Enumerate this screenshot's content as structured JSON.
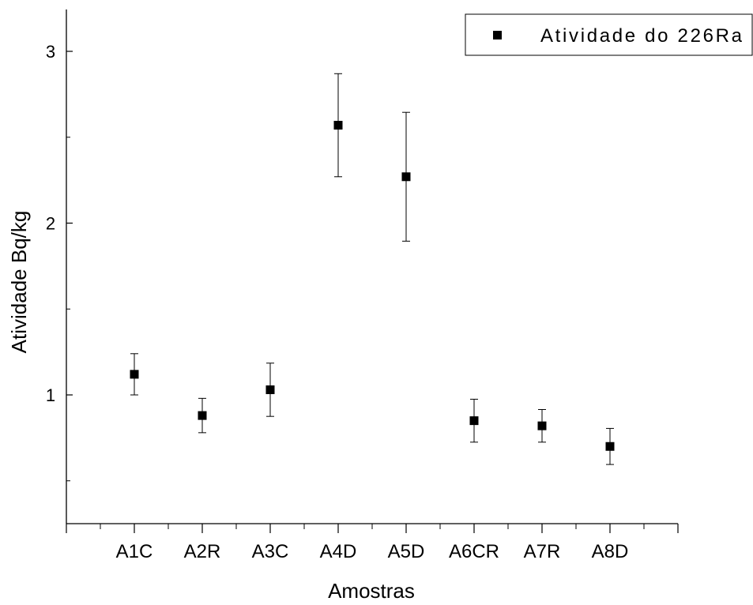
{
  "chart_data": {
    "type": "scatter",
    "xlabel": "Amostras",
    "ylabel": "Atividade Bq/kg",
    "categories": [
      "A1C",
      "A2R",
      "A3C",
      "A4D",
      "A5D",
      "A6CR",
      "A7R",
      "A8D"
    ],
    "series": [
      {
        "name": "Atividade do 226Ra",
        "values": [
          1.12,
          0.88,
          1.03,
          2.57,
          2.27,
          0.85,
          0.82,
          0.7
        ],
        "error": [
          0.12,
          0.1,
          0.155,
          0.3,
          0.375,
          0.125,
          0.095,
          0.105
        ]
      }
    ],
    "ylim": [
      0.25,
      3.25
    ],
    "yticks": [
      1,
      2,
      3
    ],
    "marker": "square",
    "error_bars": true,
    "grid": false,
    "legend_position": "top-right",
    "colors": {
      "marker": "#000000",
      "axis": "#000000"
    }
  }
}
